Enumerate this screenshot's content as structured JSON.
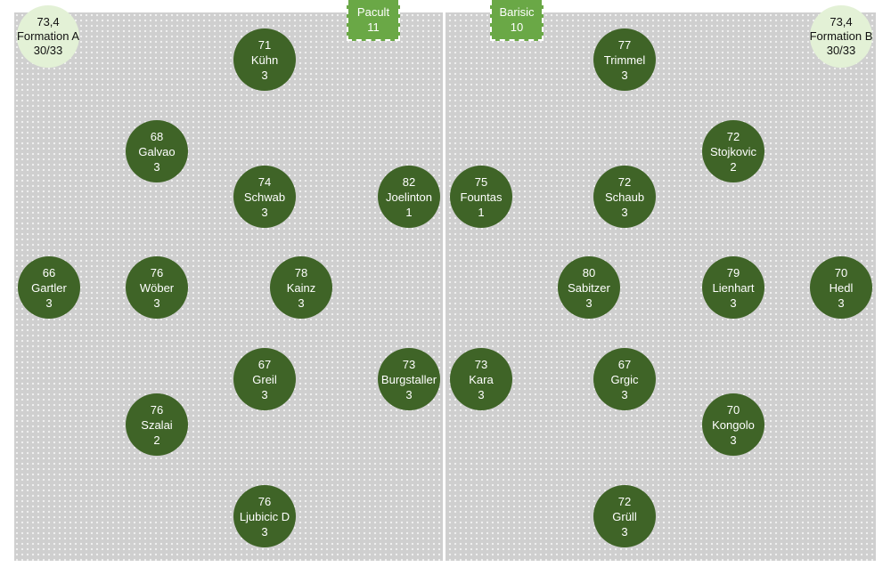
{
  "team_a": {
    "average": "73,4",
    "name": "Formation A",
    "count": "30/33",
    "keeper": {
      "name": "Pacult",
      "number": "11"
    },
    "players": [
      {
        "rating": "71",
        "name": "Kühn",
        "tag": "3"
      },
      {
        "rating": "68",
        "name": "Galvao",
        "tag": "3"
      },
      {
        "rating": "74",
        "name": "Schwab",
        "tag": "3"
      },
      {
        "rating": "82",
        "name": "Joelinton",
        "tag": "1"
      },
      {
        "rating": "66",
        "name": "Gartler",
        "tag": "3"
      },
      {
        "rating": "76",
        "name": "Wöber",
        "tag": "3"
      },
      {
        "rating": "78",
        "name": "Kainz",
        "tag": "3"
      },
      {
        "rating": "67",
        "name": "Greil",
        "tag": "3"
      },
      {
        "rating": "73",
        "name": "Burgstaller",
        "tag": "3"
      },
      {
        "rating": "76",
        "name": "Szalai",
        "tag": "2"
      },
      {
        "rating": "76",
        "name": "Ljubicic D",
        "tag": "3"
      }
    ]
  },
  "team_b": {
    "average": "73,4",
    "name": "Formation B",
    "count": "30/33",
    "keeper": {
      "name": "Barisic",
      "number": "10"
    },
    "players": [
      {
        "rating": "77",
        "name": "Trimmel",
        "tag": "3"
      },
      {
        "rating": "72",
        "name": "Stojkovic",
        "tag": "2"
      },
      {
        "rating": "75",
        "name": "Fountas",
        "tag": "1"
      },
      {
        "rating": "72",
        "name": "Schaub",
        "tag": "3"
      },
      {
        "rating": "80",
        "name": "Sabitzer",
        "tag": "3"
      },
      {
        "rating": "79",
        "name": "Lienhart",
        "tag": "3"
      },
      {
        "rating": "70",
        "name": "Hedl",
        "tag": "3"
      },
      {
        "rating": "73",
        "name": "Kara",
        "tag": "3"
      },
      {
        "rating": "67",
        "name": "Grgic",
        "tag": "3"
      },
      {
        "rating": "70",
        "name": "Kongolo",
        "tag": "3"
      },
      {
        "rating": "72",
        "name": "Grüll",
        "tag": "3"
      }
    ]
  }
}
